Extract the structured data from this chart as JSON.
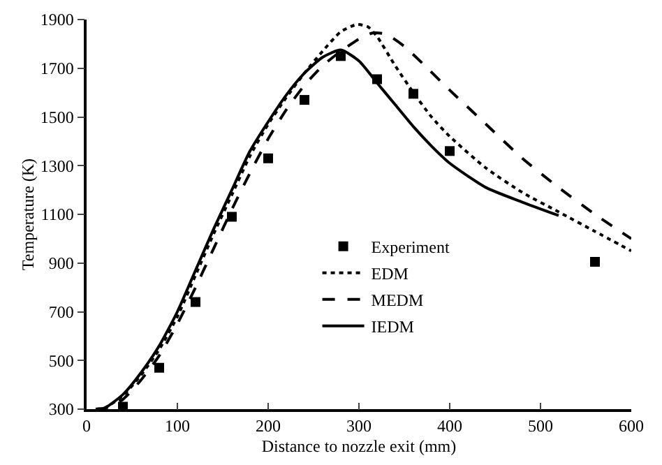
{
  "chart_data": {
    "type": "line",
    "xlabel": "Distance to nozzle exit (mm)",
    "ylabel": "Temperature (K)",
    "xlim": [
      0,
      600
    ],
    "xticks": [
      0,
      100,
      200,
      300,
      400,
      500,
      600
    ],
    "ylim": [
      300,
      1900
    ],
    "yticks": [
      300,
      500,
      700,
      900,
      1100,
      1300,
      1500,
      1700,
      1900
    ],
    "grid": false,
    "legend": "center",
    "series": [
      {
        "name": "Experiment",
        "type": "scatter",
        "marker": "square",
        "color": "#000000",
        "x": [
          40,
          80,
          120,
          160,
          200,
          240,
          280,
          320,
          360,
          400,
          560
        ],
        "values": [
          310,
          470,
          740,
          1090,
          1330,
          1570,
          1750,
          1655,
          1595,
          1360,
          905
        ]
      },
      {
        "name": "EDM",
        "line_style": "dotted",
        "color": "#000000",
        "x": [
          10,
          20,
          40,
          60,
          80,
          100,
          120,
          140,
          160,
          180,
          200,
          220,
          240,
          260,
          280,
          298,
          310,
          320,
          340,
          360,
          380,
          400,
          440,
          480,
          520,
          560,
          600
        ],
        "values": [
          300,
          305,
          355,
          440,
          545,
          680,
          850,
          1020,
          1180,
          1340,
          1470,
          1580,
          1680,
          1770,
          1850,
          1880,
          1870,
          1830,
          1710,
          1600,
          1500,
          1420,
          1290,
          1190,
          1110,
          1030,
          950
        ]
      },
      {
        "name": "MEDM",
        "line_style": "dashed",
        "color": "#000000",
        "x": [
          10,
          20,
          40,
          60,
          80,
          100,
          120,
          140,
          160,
          180,
          200,
          220,
          240,
          260,
          280,
          300,
          315,
          330,
          350,
          370,
          400,
          440,
          480,
          520,
          560,
          600
        ],
        "values": [
          300,
          303,
          340,
          420,
          520,
          650,
          800,
          960,
          1120,
          1270,
          1410,
          1530,
          1630,
          1710,
          1770,
          1820,
          1845,
          1840,
          1790,
          1720,
          1610,
          1470,
          1330,
          1210,
          1100,
          1000
        ]
      },
      {
        "name": "IEDM",
        "line_style": "solid",
        "color": "#000000",
        "x": [
          10,
          20,
          40,
          60,
          80,
          100,
          120,
          140,
          160,
          180,
          200,
          220,
          240,
          260,
          280,
          300,
          320,
          340,
          360,
          380,
          400,
          440,
          480,
          520
        ],
        "values": [
          300,
          305,
          360,
          450,
          560,
          700,
          870,
          1040,
          1200,
          1360,
          1480,
          1590,
          1680,
          1745,
          1775,
          1730,
          1640,
          1550,
          1460,
          1380,
          1310,
          1210,
          1150,
          1095
        ]
      }
    ]
  }
}
